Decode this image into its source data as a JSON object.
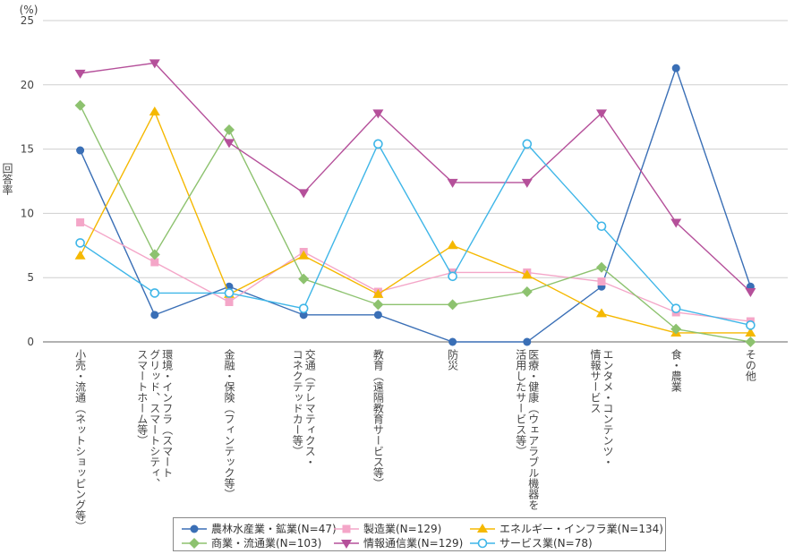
{
  "chart_data": {
    "type": "line",
    "unit_label": "(%)",
    "ylabel": "回答率",
    "ylim": [
      0,
      25
    ],
    "yticks": [
      0,
      5,
      10,
      15,
      20,
      25
    ],
    "grid": "horizontal",
    "legend_position": "bottom",
    "categories": [
      [
        "小売・流通（ネットショッピング等）"
      ],
      [
        "環境・インフラ（スマート",
        "グリッド、スマートシティ、",
        "スマートホーム等）"
      ],
      [
        "金融・保険（フィンテック等）"
      ],
      [
        "交通（テレマティクス・",
        "コネクテッドカー等）"
      ],
      [
        "教育（遠隔教育サービス等）"
      ],
      [
        "防災"
      ],
      [
        "医療・健康（ウェアラブル機器を",
        "活用したサービス等）"
      ],
      [
        "エンタメ・コンテンツ・",
        "情報サービス"
      ],
      [
        "食・農業"
      ],
      [
        "その他"
      ]
    ],
    "series": [
      {
        "name": "農林水産業・鉱業(N=47)",
        "color": "#3a6fb6",
        "marker": "circle",
        "values": [
          14.9,
          2.1,
          4.3,
          2.1,
          2.1,
          0,
          0,
          4.3,
          21.3,
          4.3
        ]
      },
      {
        "name": "製造業(N=129)",
        "color": "#f4a6c8",
        "marker": "square",
        "values": [
          9.3,
          6.2,
          3.1,
          7.0,
          3.9,
          5.4,
          5.4,
          4.7,
          2.3,
          1.6
        ]
      },
      {
        "name": "エネルギー・インフラ業(N=134)",
        "color": "#f5b800",
        "marker": "triangle-up",
        "values": [
          6.7,
          17.9,
          3.7,
          6.7,
          3.7,
          7.5,
          5.2,
          2.2,
          0.7,
          0.7
        ]
      },
      {
        "name": "商業・流通業(N=103)",
        "color": "#8dc26f",
        "marker": "diamond",
        "values": [
          18.4,
          6.8,
          16.5,
          4.9,
          2.9,
          2.9,
          3.9,
          5.8,
          1.0,
          0
        ]
      },
      {
        "name": "情報通信業(N=129)",
        "color": "#b5509a",
        "marker": "triangle-down",
        "values": [
          20.9,
          21.7,
          15.5,
          11.6,
          17.8,
          12.4,
          12.4,
          17.8,
          9.3,
          3.9
        ]
      },
      {
        "name": "サービス業(N=78)",
        "color": "#3fb6e8",
        "marker": "open-circle",
        "values": [
          7.7,
          3.8,
          3.8,
          2.6,
          15.4,
          5.1,
          15.4,
          9.0,
          2.6,
          1.3
        ]
      }
    ]
  }
}
